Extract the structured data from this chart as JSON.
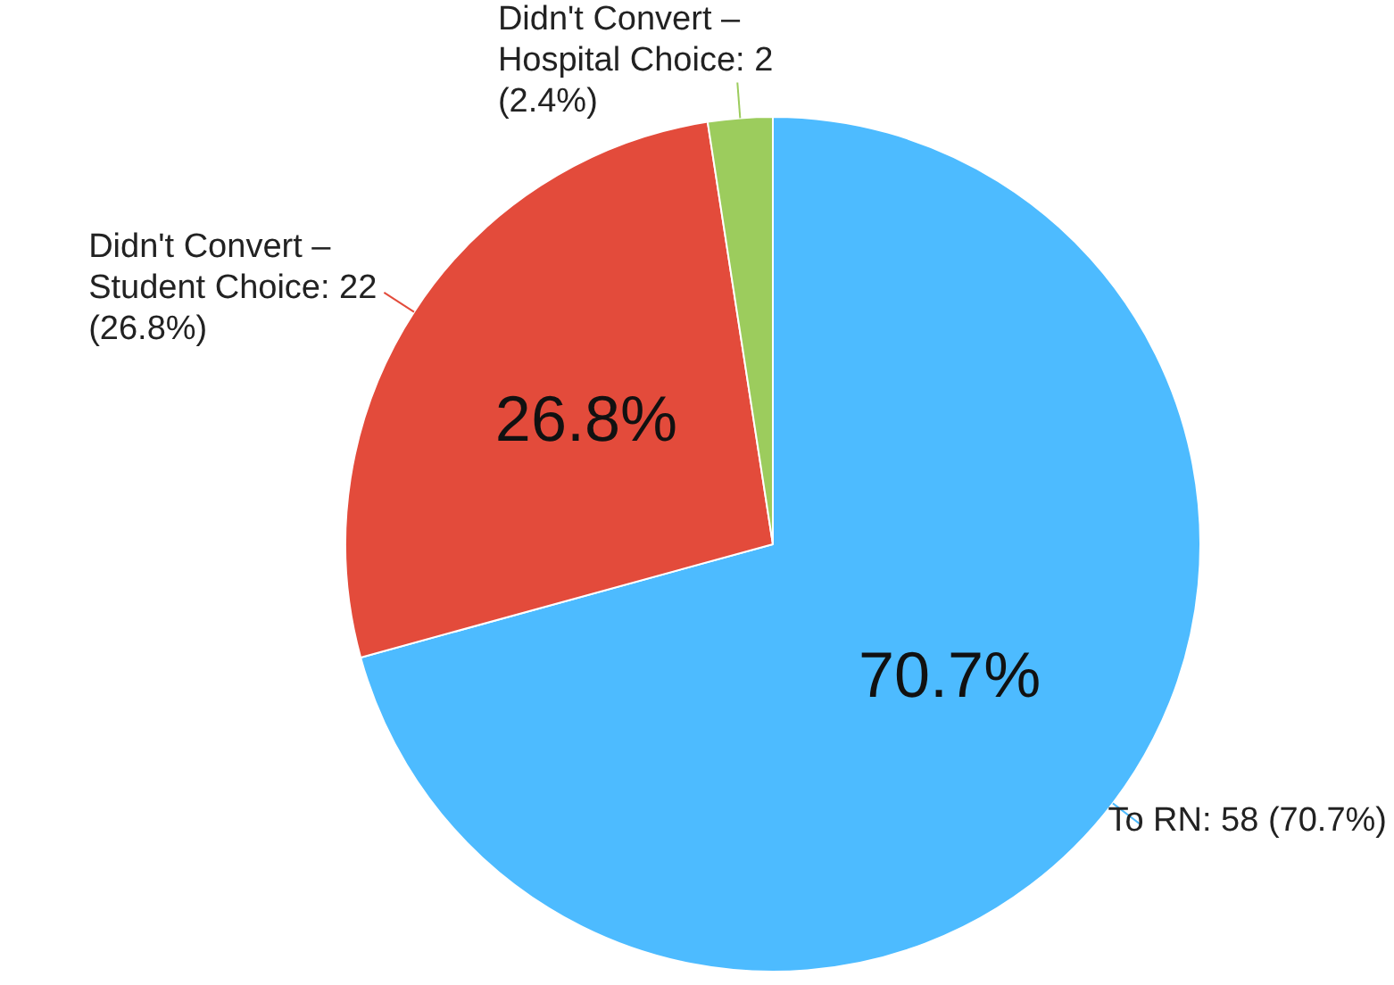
{
  "chart_data": {
    "type": "pie",
    "categories": [
      "To RN",
      "Didn't Convert – Student Choice",
      "Didn't Convert – Hospital Choice"
    ],
    "values": [
      58,
      22,
      2
    ],
    "colors": [
      "#4dbbff",
      "#e34b3b",
      "#9ccc5d"
    ],
    "value_labels": [
      "58 (70.7%)",
      "22 (26.8%)",
      "2 (2.4%)"
    ],
    "annotations": [
      {
        "text": "70.7%",
        "x": "To RN"
      },
      {
        "text": "26.8%",
        "x": "Didn't Convert – Student Choice"
      }
    ],
    "legend": false
  }
}
